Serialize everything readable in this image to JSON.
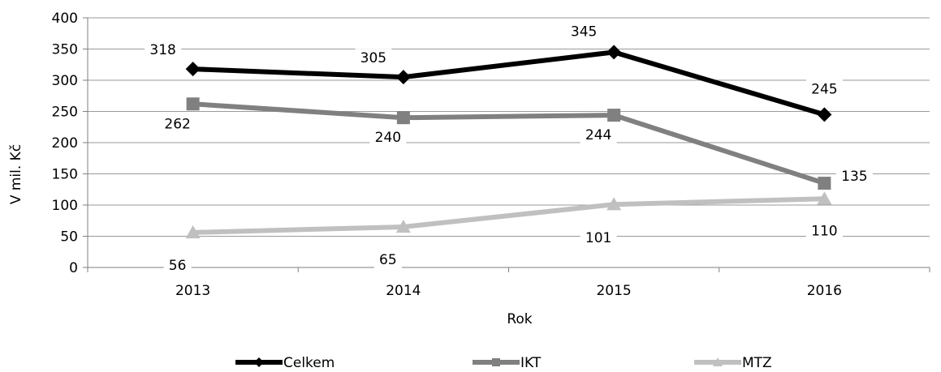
{
  "chart_data": {
    "type": "line",
    "categories": [
      "2013",
      "2014",
      "2015",
      "2016"
    ],
    "series": [
      {
        "name": "Celkem",
        "values": [
          318,
          305,
          345,
          245
        ],
        "color": "#000000",
        "marker": "diamond"
      },
      {
        "name": "IKT",
        "values": [
          262,
          240,
          244,
          135
        ],
        "color": "#808080",
        "marker": "square"
      },
      {
        "name": "MTZ",
        "values": [
          56,
          65,
          101,
          110
        ],
        "color": "#c0c0c0",
        "marker": "triangle"
      }
    ],
    "xlabel": "Rok",
    "ylabel": "V mil. Kč",
    "ylim": [
      0,
      400
    ],
    "yticks": [
      0,
      50,
      100,
      150,
      200,
      250,
      300,
      350,
      400
    ],
    "grid": true,
    "legend": "bottom"
  }
}
